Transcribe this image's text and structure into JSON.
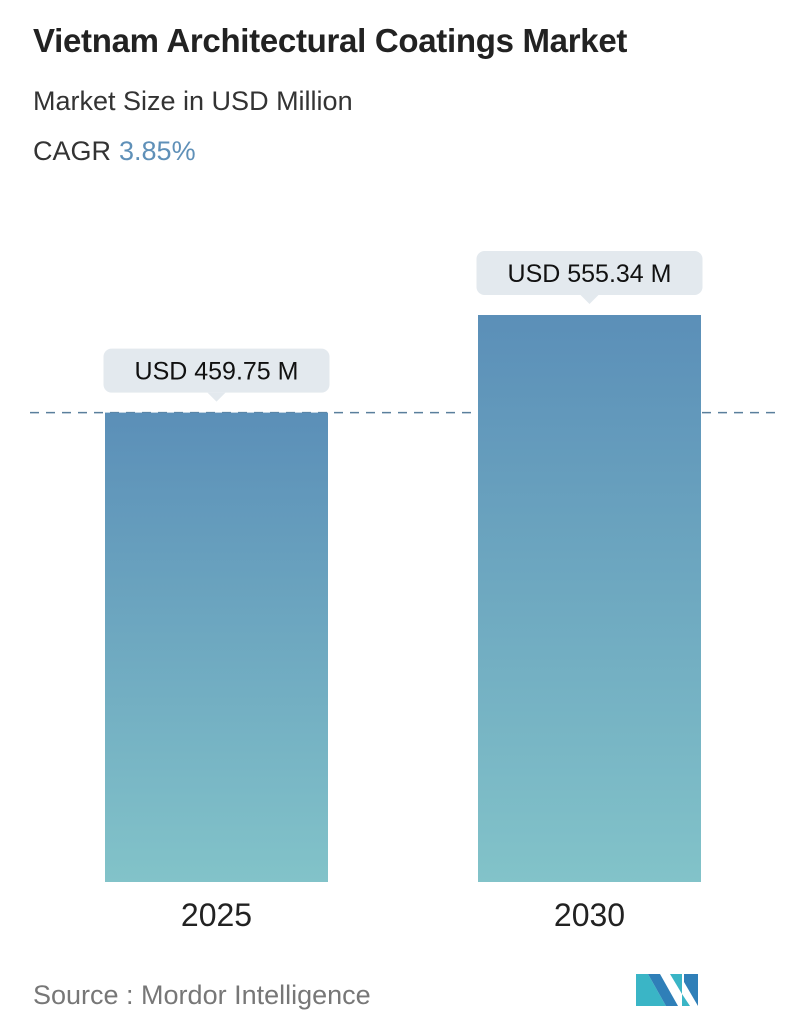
{
  "title": "Vietnam Architectural Coatings Market",
  "subtitle": "Market Size in USD Million",
  "cagr_label": "CAGR",
  "cagr_value": "3.85%",
  "source": "Source :  Mordor Intelligence",
  "logo_text": "Mordor Intelligence",
  "colors": {
    "bar_top": "#5b8fb8",
    "bar_bottom": "#82c3c9",
    "accent": "#5f90b8",
    "label_bg": "#e3e9ee",
    "dash": "#5a7f9c"
  },
  "chart_data": {
    "type": "bar",
    "categories": [
      "2025",
      "2030"
    ],
    "values": [
      459.75,
      555.34
    ],
    "data_labels": [
      "USD 459.75 M",
      "USD 555.34 M"
    ],
    "ylim": [
      0,
      555.34
    ],
    "grid": false,
    "reference_line": 459.75
  }
}
